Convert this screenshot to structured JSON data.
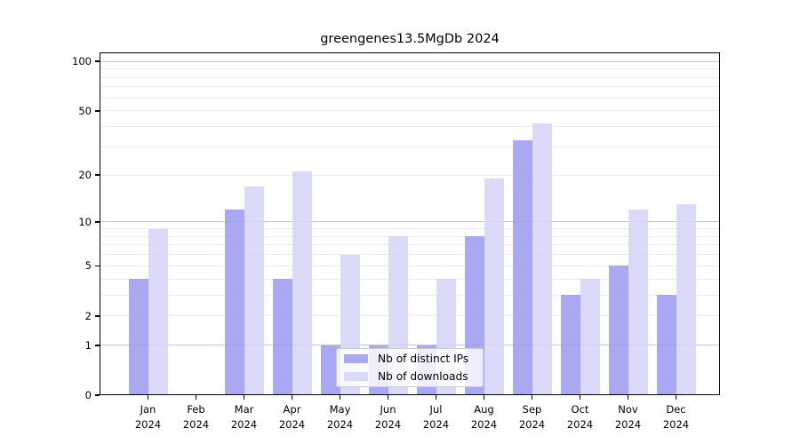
{
  "chart_data": {
    "type": "bar",
    "title": "greengenes13.5MgDb 2024",
    "categories": [
      "Jan 2024",
      "Feb 2024",
      "Mar 2024",
      "Apr 2024",
      "May 2024",
      "Jun 2024",
      "Jul 2024",
      "Aug 2024",
      "Sep 2024",
      "Oct 2024",
      "Nov 2024",
      "Dec 2024"
    ],
    "series": [
      {
        "name": "Nb of distinct IPs",
        "color": "#9a9af1",
        "values": [
          4,
          0,
          12,
          4,
          1,
          1,
          1,
          8,
          33,
          3,
          5,
          3
        ]
      },
      {
        "name": "Nb of downloads",
        "color": "#d5d5f8",
        "values": [
          9,
          0,
          17,
          21,
          6,
          8,
          4,
          19,
          42,
          4,
          12,
          13
        ]
      }
    ],
    "yticks": [
      0,
      1,
      2,
      5,
      10,
      20,
      50,
      100
    ],
    "yscale": "log1p",
    "ylim": [
      0,
      115
    ],
    "grid": "on",
    "legend_position": "lower center inside plot",
    "xlabel": "",
    "ylabel": ""
  },
  "colors": {
    "background": "#ffffff",
    "spine": "#000000",
    "grid_major": "#c6c6c6",
    "grid_minor": "#ececec"
  }
}
